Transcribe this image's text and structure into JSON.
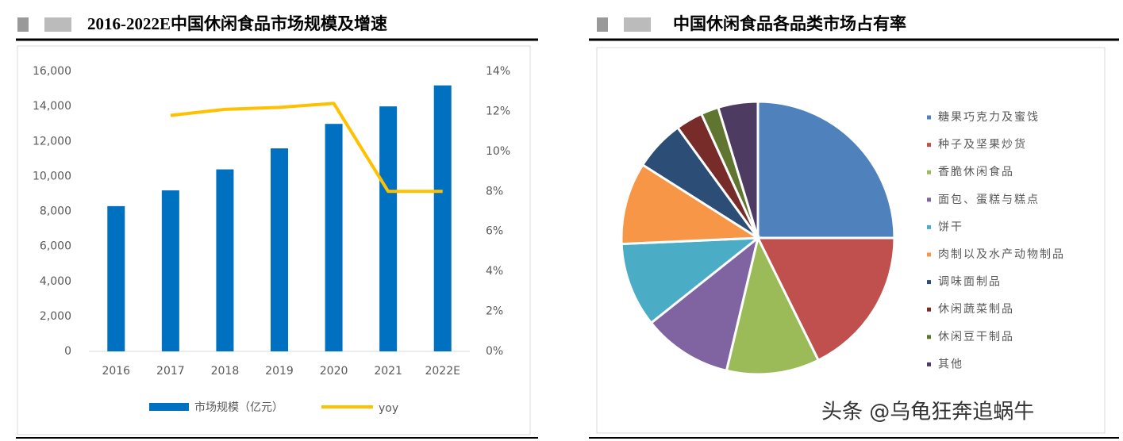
{
  "chart_data": [
    {
      "type": "bar",
      "title": "2016-2022E中国休闲食品市场规模及增速",
      "categories": [
        "2016",
        "2017",
        "2018",
        "2019",
        "2020",
        "2021",
        "2022E"
      ],
      "series": [
        {
          "name": "市场规模（亿元）",
          "color": "#0070c0",
          "type": "bar",
          "values": [
            8300,
            9200,
            10400,
            11600,
            13000,
            14000,
            15200
          ]
        },
        {
          "name": "yoy",
          "color": "#ffc000",
          "type": "line",
          "axis": "y2",
          "values": [
            null,
            11.8,
            12.1,
            12.2,
            12.4,
            8,
            8
          ]
        }
      ],
      "ylim": [
        0,
        16000
      ],
      "yticks": [
        0,
        {
          "value": 2000,
          "label": "2,000"
        },
        {
          "value": 4000,
          "label": "4,000"
        },
        {
          "value": 6000,
          "label": "6,000"
        },
        {
          "value": 8000,
          "label": "8,000"
        },
        {
          "value": 10000,
          "label": "10,000"
        },
        {
          "value": 12000,
          "label": "12,000"
        },
        {
          "value": 14000,
          "label": "14,000"
        },
        {
          "value": 16000,
          "label": "16,000"
        }
      ],
      "y2lim": [
        0,
        14
      ],
      "y2ticks": [
        {
          "value": 0,
          "label": "0%"
        },
        {
          "value": 2,
          "label": "2%"
        },
        {
          "value": 4,
          "label": "4%"
        },
        {
          "value": 6,
          "label": "6%"
        },
        {
          "value": 8,
          "label": "8%"
        },
        {
          "value": 10,
          "label": "10%"
        },
        {
          "value": 12,
          "label": "12%"
        },
        {
          "value": 14,
          "label": "14%"
        }
      ],
      "legend": "bottom"
    },
    {
      "type": "pie",
      "title": "中国休闲食品各品类市场占有率",
      "categories": [
        "糖果巧克力及蜜饯",
        "种子及坚果炒货",
        "香脆休闲食品",
        "面包、蛋糕与糕点",
        "饼干",
        "肉制以及水产动物制品",
        "调味面制品",
        "休闲蔬菜制品",
        "休闲豆干制品",
        "其他"
      ],
      "values": [
        25,
        17.7,
        11,
        10.6,
        10,
        9.7,
        6,
        3.2,
        2.1,
        4.7
      ],
      "colors": [
        "#4f81bd",
        "#c0504d",
        "#9bbb59",
        "#8064a2",
        "#4bacc6",
        "#f79646",
        "#2c4d75",
        "#772c2a",
        "#5f7530",
        "#4d3b62"
      ],
      "legend": "right"
    }
  ],
  "watermark": "头条 @乌龟狂奔追蜗牛"
}
